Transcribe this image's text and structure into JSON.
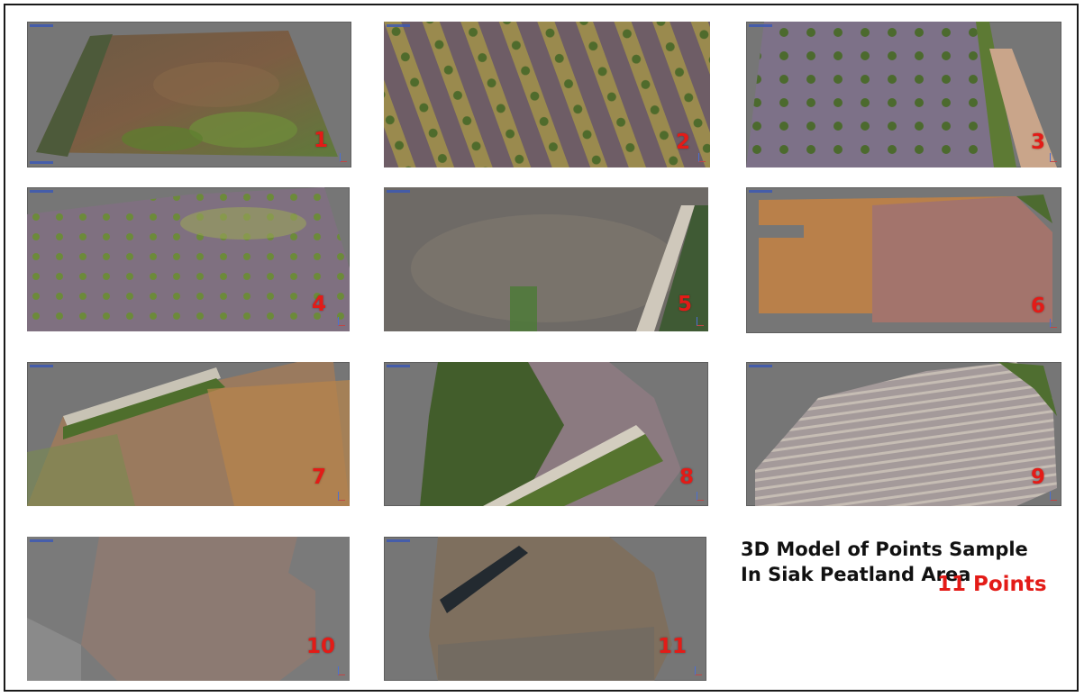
{
  "caption": {
    "line1": "3D Model of Points Sample",
    "line2": "In Siak Peatland Area"
  },
  "points_count_label": "11 Points",
  "panels": [
    {
      "label": "1"
    },
    {
      "label": "2"
    },
    {
      "label": "3"
    },
    {
      "label": "4"
    },
    {
      "label": "5"
    },
    {
      "label": "6"
    },
    {
      "label": "7"
    },
    {
      "label": "8"
    },
    {
      "label": "9"
    },
    {
      "label": "10"
    },
    {
      "label": "11"
    }
  ],
  "colors": {
    "label_red": "#e31b17",
    "viewer_background": "#767676"
  }
}
